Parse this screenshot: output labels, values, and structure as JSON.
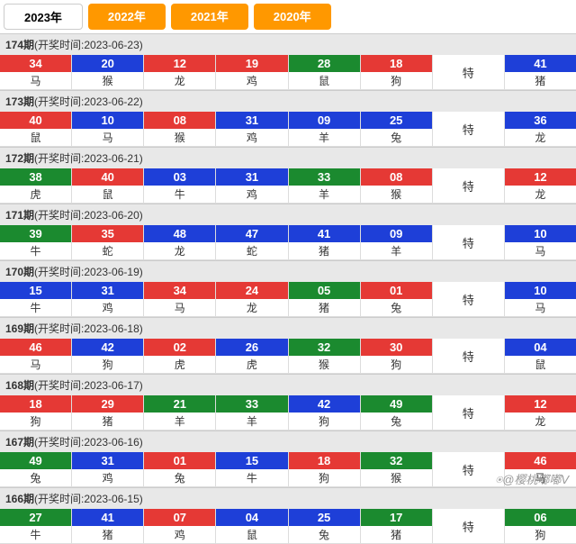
{
  "tabs": [
    {
      "label": "2023年",
      "active": true
    },
    {
      "label": "2022年",
      "active": false
    },
    {
      "label": "2021年",
      "active": false
    },
    {
      "label": "2020年",
      "active": false
    }
  ],
  "colors": {
    "red": "#e53935",
    "blue": "#1e3fd8",
    "green": "#1b8a2f",
    "tab_inactive": "#ff9800",
    "header_bg": "#e8e8e8"
  },
  "te_label": "特",
  "watermark": "⍟@樱桃嘟嘟V",
  "periods": [
    {
      "issue": "174期",
      "time_label": "(开奖时间:2023-06-23)",
      "cells": [
        {
          "n": "34",
          "z": "马",
          "c": "red"
        },
        {
          "n": "20",
          "z": "猴",
          "c": "blue"
        },
        {
          "n": "12",
          "z": "龙",
          "c": "red"
        },
        {
          "n": "19",
          "z": "鸡",
          "c": "red"
        },
        {
          "n": "28",
          "z": "鼠",
          "c": "green"
        },
        {
          "n": "18",
          "z": "狗",
          "c": "red"
        },
        {
          "te": true
        },
        {
          "n": "41",
          "z": "猪",
          "c": "blue"
        }
      ]
    },
    {
      "issue": "173期",
      "time_label": "(开奖时间:2023-06-22)",
      "cells": [
        {
          "n": "40",
          "z": "鼠",
          "c": "red"
        },
        {
          "n": "10",
          "z": "马",
          "c": "blue"
        },
        {
          "n": "08",
          "z": "猴",
          "c": "red"
        },
        {
          "n": "31",
          "z": "鸡",
          "c": "blue"
        },
        {
          "n": "09",
          "z": "羊",
          "c": "blue"
        },
        {
          "n": "25",
          "z": "兔",
          "c": "blue"
        },
        {
          "te": true
        },
        {
          "n": "36",
          "z": "龙",
          "c": "blue"
        }
      ]
    },
    {
      "issue": "172期",
      "time_label": "(开奖时间:2023-06-21)",
      "cells": [
        {
          "n": "38",
          "z": "虎",
          "c": "green"
        },
        {
          "n": "40",
          "z": "鼠",
          "c": "red"
        },
        {
          "n": "03",
          "z": "牛",
          "c": "blue"
        },
        {
          "n": "31",
          "z": "鸡",
          "c": "blue"
        },
        {
          "n": "33",
          "z": "羊",
          "c": "green"
        },
        {
          "n": "08",
          "z": "猴",
          "c": "red"
        },
        {
          "te": true
        },
        {
          "n": "12",
          "z": "龙",
          "c": "red"
        }
      ]
    },
    {
      "issue": "171期",
      "time_label": "(开奖时间:2023-06-20)",
      "cells": [
        {
          "n": "39",
          "z": "牛",
          "c": "green"
        },
        {
          "n": "35",
          "z": "蛇",
          "c": "red"
        },
        {
          "n": "48",
          "z": "龙",
          "c": "blue"
        },
        {
          "n": "47",
          "z": "蛇",
          "c": "blue"
        },
        {
          "n": "41",
          "z": "猪",
          "c": "blue"
        },
        {
          "n": "09",
          "z": "羊",
          "c": "blue"
        },
        {
          "te": true
        },
        {
          "n": "10",
          "z": "马",
          "c": "blue"
        }
      ]
    },
    {
      "issue": "170期",
      "time_label": "(开奖时间:2023-06-19)",
      "cells": [
        {
          "n": "15",
          "z": "牛",
          "c": "blue"
        },
        {
          "n": "31",
          "z": "鸡",
          "c": "blue"
        },
        {
          "n": "34",
          "z": "马",
          "c": "red"
        },
        {
          "n": "24",
          "z": "龙",
          "c": "red"
        },
        {
          "n": "05",
          "z": "猪",
          "c": "green"
        },
        {
          "n": "01",
          "z": "兔",
          "c": "red"
        },
        {
          "te": true
        },
        {
          "n": "10",
          "z": "马",
          "c": "blue"
        }
      ]
    },
    {
      "issue": "169期",
      "time_label": "(开奖时间:2023-06-18)",
      "cells": [
        {
          "n": "46",
          "z": "马",
          "c": "red"
        },
        {
          "n": "42",
          "z": "狗",
          "c": "blue"
        },
        {
          "n": "02",
          "z": "虎",
          "c": "red"
        },
        {
          "n": "26",
          "z": "虎",
          "c": "blue"
        },
        {
          "n": "32",
          "z": "猴",
          "c": "green"
        },
        {
          "n": "30",
          "z": "狗",
          "c": "red"
        },
        {
          "te": true
        },
        {
          "n": "04",
          "z": "鼠",
          "c": "blue"
        }
      ]
    },
    {
      "issue": "168期",
      "time_label": "(开奖时间:2023-06-17)",
      "cells": [
        {
          "n": "18",
          "z": "狗",
          "c": "red"
        },
        {
          "n": "29",
          "z": "猪",
          "c": "red"
        },
        {
          "n": "21",
          "z": "羊",
          "c": "green"
        },
        {
          "n": "33",
          "z": "羊",
          "c": "green"
        },
        {
          "n": "42",
          "z": "狗",
          "c": "blue"
        },
        {
          "n": "49",
          "z": "兔",
          "c": "green"
        },
        {
          "te": true
        },
        {
          "n": "12",
          "z": "龙",
          "c": "red"
        }
      ]
    },
    {
      "issue": "167期",
      "time_label": "(开奖时间:2023-06-16)",
      "cells": [
        {
          "n": "49",
          "z": "兔",
          "c": "green"
        },
        {
          "n": "31",
          "z": "鸡",
          "c": "blue"
        },
        {
          "n": "01",
          "z": "兔",
          "c": "red"
        },
        {
          "n": "15",
          "z": "牛",
          "c": "blue"
        },
        {
          "n": "18",
          "z": "狗",
          "c": "red"
        },
        {
          "n": "32",
          "z": "猴",
          "c": "green"
        },
        {
          "te": true
        },
        {
          "n": "46",
          "z": "马",
          "c": "red"
        }
      ]
    },
    {
      "issue": "166期",
      "time_label": "(开奖时间:2023-06-15)",
      "cells": [
        {
          "n": "27",
          "z": "牛",
          "c": "green"
        },
        {
          "n": "41",
          "z": "猪",
          "c": "blue"
        },
        {
          "n": "07",
          "z": "鸡",
          "c": "red"
        },
        {
          "n": "04",
          "z": "鼠",
          "c": "blue"
        },
        {
          "n": "25",
          "z": "兔",
          "c": "blue"
        },
        {
          "n": "17",
          "z": "猪",
          "c": "green"
        },
        {
          "te": true
        },
        {
          "n": "06",
          "z": "狗",
          "c": "green"
        }
      ]
    }
  ]
}
